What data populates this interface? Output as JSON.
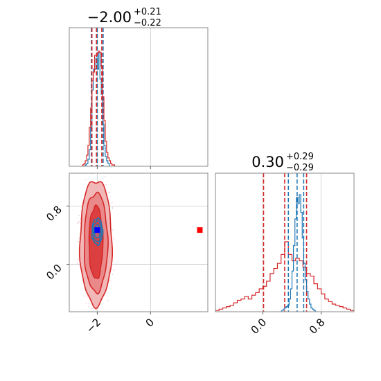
{
  "chart_data": {
    "type": "corner",
    "params": [
      {
        "title": {
          "value": "−2.00",
          "plus": "+0.21",
          "minus": "−0.22"
        }
      },
      {
        "title": {
          "value": "0.30",
          "plus": "+0.29",
          "minus": "−0.29"
        }
      }
    ],
    "xlim_p0": [
      -3.05,
      2.15
    ],
    "xlim_p1": [
      -0.65,
      1.25
    ],
    "ylim_p1": [
      -0.65,
      1.25
    ],
    "ticks_p0": {
      "values": [
        -2,
        0
      ],
      "labels": [
        "−2",
        "0"
      ]
    },
    "ticks_p1": {
      "values": [
        0.0,
        0.8
      ],
      "labels": [
        "0.0",
        "0.8"
      ]
    },
    "grid": true,
    "colors": {
      "blue": "#1f77b4",
      "red": "#d62728",
      "square_blue": "#0000ff",
      "square_red": "#ff0000"
    },
    "series": [
      {
        "color": "blue",
        "quantiles_p0": [
          -2.22,
          -2.0,
          -1.78
        ],
        "quantiles_p1": [
          0.35,
          0.47,
          0.56
        ],
        "hist_p0": {
          "edges": [
            -2.5,
            -2.45,
            -2.4,
            -2.35,
            -2.3,
            -2.25,
            -2.2,
            -2.15,
            -2.1,
            -2.05,
            -2.0,
            -1.95,
            -1.9,
            -1.85,
            -1.8,
            -1.75,
            -1.7,
            -1.65,
            -1.6,
            -1.55,
            -1.5
          ],
          "counts": [
            0.0,
            0.01,
            0.02,
            0.05,
            0.12,
            0.28,
            0.55,
            0.7,
            0.7,
            0.78,
            0.7,
            0.82,
            0.63,
            0.52,
            0.3,
            0.15,
            0.07,
            0.04,
            0.02,
            0.0
          ]
        },
        "hist_p1": {
          "edges": [
            0.24,
            0.26,
            0.28,
            0.3,
            0.32,
            0.34,
            0.36,
            0.38,
            0.4,
            0.42,
            0.44,
            0.46,
            0.48,
            0.5,
            0.52,
            0.54,
            0.56,
            0.58,
            0.6,
            0.62,
            0.64,
            0.66,
            0.68,
            0.7,
            0.72,
            0.74
          ],
          "counts": [
            0.0,
            0.01,
            0.02,
            0.03,
            0.04,
            0.05,
            0.1,
            0.18,
            0.32,
            0.52,
            0.73,
            0.9,
            0.85,
            0.92,
            0.78,
            0.58,
            0.38,
            0.25,
            0.16,
            0.1,
            0.06,
            0.03,
            0.02,
            0.01,
            0.0
          ]
        },
        "contours": [
          {
            "cx": -2.0,
            "cy": 0.45,
            "rx": 0.2,
            "ry": 0.18
          },
          {
            "cx": -2.0,
            "cy": 0.45,
            "rx": 0.16,
            "ry": 0.14
          },
          {
            "cx": -2.0,
            "cy": 0.45,
            "rx": 0.11,
            "ry": 0.09
          }
        ],
        "truth_square": [
          -2.0,
          0.47
        ]
      },
      {
        "color": "red",
        "quantiles_p0": [
          -2.2,
          -2.03,
          -1.83
        ],
        "quantiles_p1": [
          0.01,
          0.3,
          0.6
        ],
        "hist_p0": {
          "edges": [
            -2.6,
            -2.55,
            -2.5,
            -2.45,
            -2.4,
            -2.35,
            -2.3,
            -2.25,
            -2.2,
            -2.15,
            -2.1,
            -2.05,
            -2.0,
            -1.95,
            -1.9,
            -1.85,
            -1.8,
            -1.75,
            -1.7,
            -1.65,
            -1.6,
            -1.55,
            -1.5,
            -1.45,
            -1.4,
            -1.35,
            -1.3
          ],
          "counts": [
            0.0,
            0.01,
            0.02,
            0.04,
            0.08,
            0.15,
            0.28,
            0.42,
            0.62,
            0.68,
            0.8,
            0.8,
            0.82,
            0.83,
            0.82,
            0.72,
            0.5,
            0.33,
            0.18,
            0.1,
            0.06,
            0.04,
            0.02,
            0.01,
            0.01,
            0.0
          ]
        },
        "hist_p1": {
          "edges": [
            -0.65,
            -0.6,
            -0.55,
            -0.5,
            -0.45,
            -0.4,
            -0.35,
            -0.3,
            -0.25,
            -0.2,
            -0.15,
            -0.1,
            -0.05,
            0.0,
            0.05,
            0.1,
            0.15,
            0.2,
            0.25,
            0.3,
            0.35,
            0.4,
            0.45,
            0.5,
            0.55,
            0.6,
            0.65,
            0.7,
            0.75,
            0.8,
            0.85,
            0.9,
            0.95,
            1.0,
            1.05,
            1.1,
            1.15,
            1.2,
            1.25
          ],
          "counts": [
            0.01,
            0.02,
            0.03,
            0.04,
            0.05,
            0.07,
            0.09,
            0.1,
            0.12,
            0.1,
            0.13,
            0.15,
            0.18,
            0.2,
            0.24,
            0.3,
            0.34,
            0.38,
            0.45,
            0.55,
            0.45,
            0.4,
            0.42,
            0.4,
            0.35,
            0.3,
            0.28,
            0.22,
            0.18,
            0.14,
            0.1,
            0.08,
            0.06,
            0.05,
            0.04,
            0.03,
            0.02,
            0.01
          ]
        },
        "contours": [
          {
            "cx": -2.05,
            "cy": 0.3,
            "rx": 0.6,
            "ry": 0.86
          },
          {
            "cx": -2.05,
            "cy": 0.3,
            "rx": 0.44,
            "ry": 0.68
          },
          {
            "cx": -2.05,
            "cy": 0.3,
            "rx": 0.26,
            "ry": 0.5
          }
        ],
        "truth_square": [
          1.85,
          0.47
        ]
      }
    ]
  }
}
